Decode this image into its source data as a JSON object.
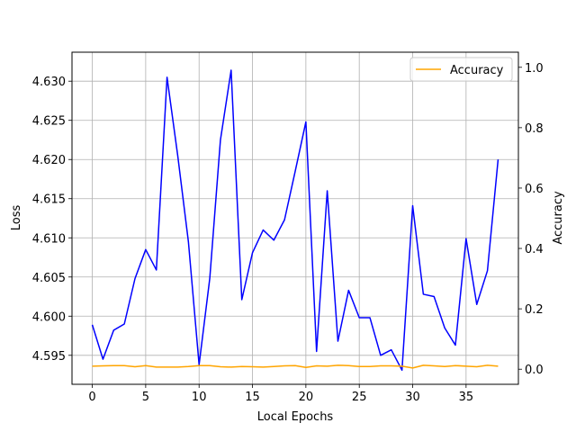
{
  "chart_data": {
    "type": "line",
    "xlabel": "Local Epochs",
    "ylabel": "Loss",
    "y2label": "Accuracy",
    "xlim": [
      -1.9,
      39.9
    ],
    "ylim": [
      4.5913,
      4.6337
    ],
    "y2lim": [
      -0.05,
      1.05
    ],
    "xticks": [
      0,
      5,
      10,
      15,
      20,
      25,
      30,
      35
    ],
    "yticks": [
      4.595,
      4.6,
      4.605,
      4.61,
      4.615,
      4.62,
      4.625,
      4.63
    ],
    "y2ticks": [
      0.0,
      0.2,
      0.4,
      0.6,
      0.8,
      1.0
    ],
    "grid": true,
    "legend_position": "top-right",
    "colors": {
      "loss": "#0000ff",
      "accuracy": "#ffa500",
      "grid": "#b0b0b0"
    },
    "series": [
      {
        "name": "",
        "axis": "left",
        "x": [
          0,
          1,
          2,
          3,
          4,
          5,
          6,
          7,
          8,
          9,
          10,
          11,
          12,
          13,
          14,
          15,
          16,
          17,
          18,
          19,
          20,
          21,
          22,
          23,
          24,
          25,
          26,
          27,
          28,
          29,
          30,
          31,
          32,
          33,
          34,
          35,
          36,
          37,
          38
        ],
        "values": [
          4.5989,
          4.5945,
          4.5982,
          4.599,
          4.6048,
          4.6085,
          4.6059,
          4.6305,
          4.6205,
          4.6095,
          4.5938,
          4.6048,
          4.6225,
          4.6314,
          4.6021,
          4.6081,
          4.611,
          4.6097,
          4.6123,
          4.6185,
          4.6248,
          4.5955,
          4.616,
          4.5968,
          4.6033,
          4.5998,
          4.5998,
          4.595,
          4.5957,
          4.5931,
          4.6141,
          4.6028,
          4.6025,
          4.5985,
          4.5963,
          4.6099,
          4.6015,
          4.6058,
          4.62
        ]
      },
      {
        "name": "Accuracy",
        "axis": "right",
        "x": [
          0,
          1,
          2,
          3,
          4,
          5,
          6,
          7,
          8,
          9,
          10,
          11,
          12,
          13,
          14,
          15,
          16,
          17,
          18,
          19,
          20,
          21,
          22,
          23,
          24,
          25,
          26,
          27,
          28,
          29,
          30,
          31,
          32,
          33,
          34,
          35,
          36,
          37,
          38
        ],
        "values": [
          0.01,
          0.011,
          0.012,
          0.012,
          0.008,
          0.012,
          0.007,
          0.007,
          0.007,
          0.009,
          0.012,
          0.012,
          0.008,
          0.007,
          0.009,
          0.008,
          0.007,
          0.009,
          0.011,
          0.012,
          0.006,
          0.011,
          0.01,
          0.013,
          0.012,
          0.009,
          0.009,
          0.011,
          0.011,
          0.01,
          0.004,
          0.013,
          0.011,
          0.009,
          0.012,
          0.01,
          0.008,
          0.013,
          0.01
        ]
      }
    ]
  }
}
